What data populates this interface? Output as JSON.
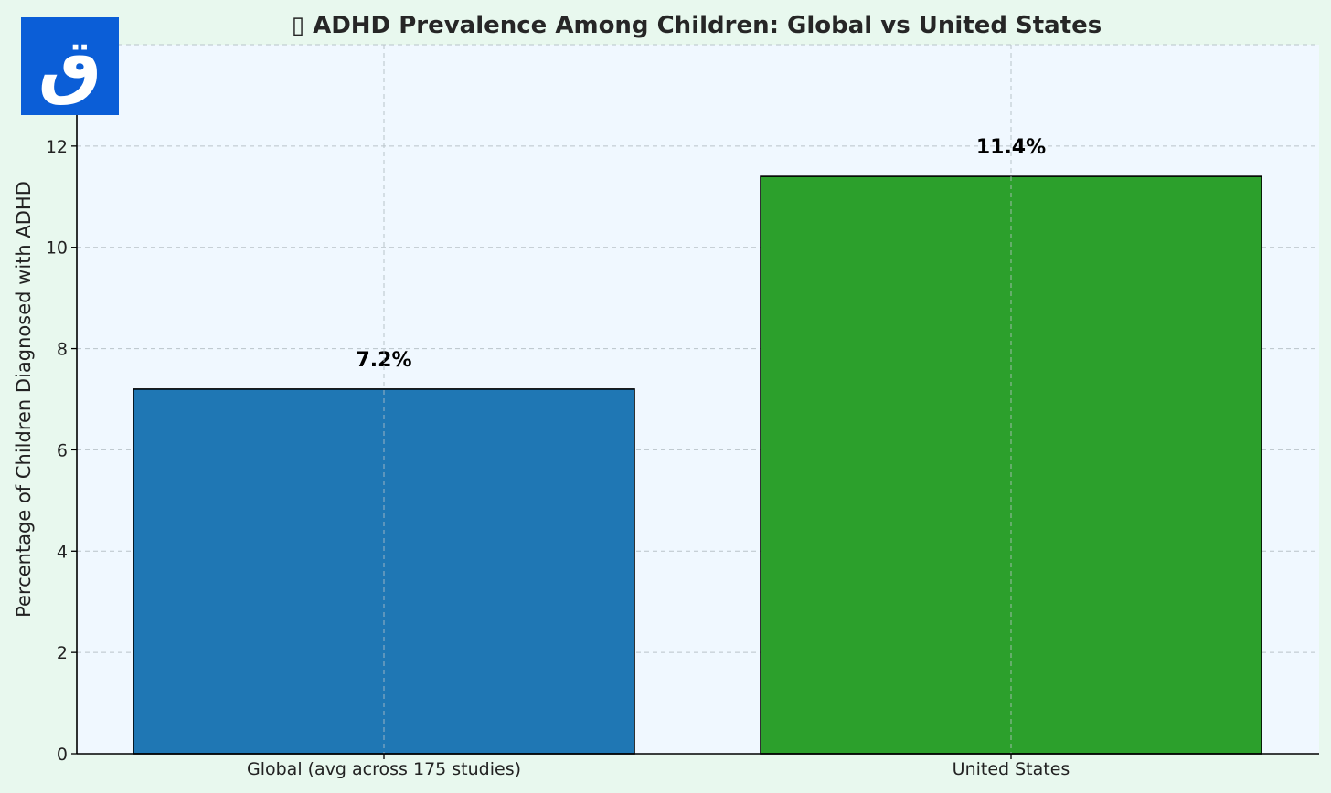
{
  "chart_data": {
    "type": "bar",
    "title": "▯ ADHD Prevalence Among Children: Global vs United States",
    "xlabel": "",
    "ylabel": "Percentage of Children Diagnosed with ADHD",
    "categories": [
      "Global (avg across 175 studies)",
      "United States"
    ],
    "values": [
      7.2,
      11.4
    ],
    "value_labels": [
      "7.2%",
      "11.4%"
    ],
    "colors": [
      "#1f77b4",
      "#2ca02c"
    ],
    "ylim": [
      0,
      14
    ],
    "yticks": [
      0,
      2,
      4,
      6,
      8,
      10,
      12
    ],
    "grid": true,
    "plot_background": "#f0f8ff",
    "page_background": "#e8f8ee"
  },
  "logo": {
    "glyph": "ق",
    "background": "#0b5ed7"
  }
}
